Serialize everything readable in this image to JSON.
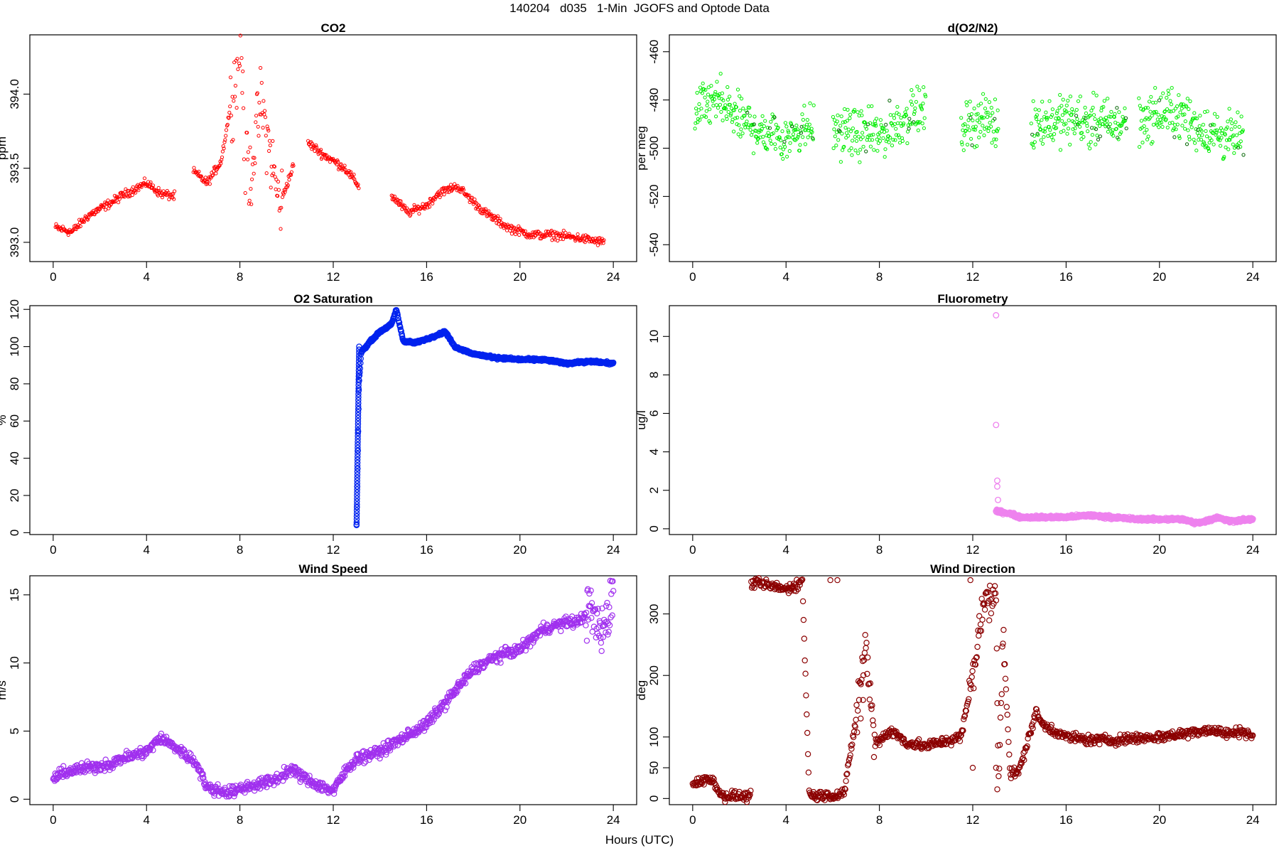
{
  "figure": {
    "title": "140204   d035   1-Min  JGOFS and Optode Data",
    "xlabel": "Hours (UTC)"
  },
  "chart_data": [
    {
      "id": "co2",
      "type": "scatter",
      "title": "CO2",
      "ylabel": "ppm",
      "color": "#ff0000",
      "marker": "small-open-circle",
      "xlim": [
        -1,
        25
      ],
      "ylim": [
        392.87,
        394.4
      ],
      "xticks": [
        0,
        4,
        8,
        12,
        16,
        20,
        24
      ],
      "yticks": [
        393.0,
        393.5,
        394.0
      ],
      "yticklabels": [
        "393.0",
        "393.5",
        "394.0"
      ],
      "gaps_hours": [
        [
          5.2,
          6.0
        ],
        [
          10.3,
          10.9
        ],
        [
          13.1,
          14.5
        ]
      ],
      "key_points": [
        [
          0.1,
          393.1
        ],
        [
          0.8,
          393.07
        ],
        [
          1.5,
          393.18
        ],
        [
          2.5,
          393.27
        ],
        [
          3.0,
          393.32
        ],
        [
          4.0,
          393.4
        ],
        [
          4.6,
          393.33
        ],
        [
          5.2,
          393.31
        ],
        [
          6.0,
          393.48
        ],
        [
          6.6,
          393.4
        ],
        [
          7.2,
          393.55
        ],
        [
          8.05,
          394.35
        ],
        [
          8.4,
          393.4
        ],
        [
          8.9,
          393.95
        ],
        [
          9.7,
          393.25
        ],
        [
          10.7,
          393.7
        ],
        [
          11.5,
          393.6
        ],
        [
          12.5,
          393.5
        ],
        [
          13.1,
          393.38
        ],
        [
          14.6,
          393.3
        ],
        [
          15.2,
          393.2
        ],
        [
          16.0,
          393.25
        ],
        [
          16.5,
          393.33
        ],
        [
          17.3,
          393.38
        ],
        [
          18.5,
          393.2
        ],
        [
          19.5,
          393.1
        ],
        [
          20.5,
          393.05
        ],
        [
          21.5,
          393.05
        ],
        [
          22.5,
          393.03
        ],
        [
          23.6,
          393.0
        ]
      ]
    },
    {
      "id": "do2n2",
      "type": "scatter",
      "title": "d(O2/N2)",
      "ylabel": "per meg",
      "color": "#00ee00",
      "marker": "small-open-circle",
      "xlim": [
        -1,
        25
      ],
      "ylim": [
        -547,
        -453
      ],
      "xticks": [
        0,
        4,
        8,
        12,
        16,
        20,
        24
      ],
      "yticks": [
        -540,
        -520,
        -500,
        -480,
        -460
      ],
      "gaps_hours": [
        [
          5.2,
          6.0
        ],
        [
          10.0,
          11.5
        ],
        [
          13.1,
          14.5
        ],
        [
          18.6,
          19.1
        ]
      ],
      "key_points": [
        [
          0.1,
          -485
        ],
        [
          1.0,
          -480
        ],
        [
          2.0,
          -488
        ],
        [
          3.0,
          -493
        ],
        [
          4.0,
          -495
        ],
        [
          5.0,
          -490
        ],
        [
          6.0,
          -493
        ],
        [
          8.0,
          -495
        ],
        [
          9.5,
          -485
        ],
        [
          11.6,
          -490
        ],
        [
          12.5,
          -488
        ],
        [
          13.0,
          -490
        ],
        [
          14.6,
          -490
        ],
        [
          16.0,
          -488
        ],
        [
          18.0,
          -490
        ],
        [
          19.2,
          -488
        ],
        [
          20.5,
          -485
        ],
        [
          22.0,
          -493
        ],
        [
          23.6,
          -497
        ]
      ]
    },
    {
      "id": "o2sat",
      "type": "scatter",
      "title": "O2 Saturation",
      "ylabel": "%",
      "color": "#0022ee",
      "marker": "open-circle",
      "xlim": [
        -1,
        25
      ],
      "ylim": [
        -1,
        122
      ],
      "xticks": [
        0,
        4,
        8,
        12,
        16,
        20,
        24
      ],
      "yticks": [
        0,
        20,
        40,
        60,
        80,
        100,
        120
      ],
      "data_start_hour": 13.0,
      "key_points": [
        [
          13.0,
          4
        ],
        [
          13.05,
          40
        ],
        [
          13.1,
          80
        ],
        [
          13.2,
          97
        ],
        [
          13.6,
          103
        ],
        [
          14.0,
          108
        ],
        [
          14.5,
          112
        ],
        [
          14.7,
          120
        ],
        [
          15.0,
          103
        ],
        [
          15.5,
          102
        ],
        [
          16.0,
          104
        ],
        [
          16.8,
          108
        ],
        [
          17.2,
          100
        ],
        [
          18.0,
          96
        ],
        [
          19.0,
          94
        ],
        [
          20.0,
          93
        ],
        [
          21.0,
          93
        ],
        [
          22.0,
          91
        ],
        [
          23.0,
          92
        ],
        [
          24.0,
          91
        ]
      ]
    },
    {
      "id": "fluor",
      "type": "scatter",
      "title": "Fluorometry",
      "ylabel": "ug/l",
      "color": "#ee82ee",
      "marker": "open-circle",
      "xlim": [
        -1,
        25
      ],
      "ylim": [
        -0.3,
        11.6
      ],
      "xticks": [
        0,
        4,
        8,
        12,
        16,
        20,
        24
      ],
      "yticks": [
        0,
        2,
        4,
        6,
        8,
        10
      ],
      "data_start_hour": 13.0,
      "spikes": [
        [
          13.0,
          11.1
        ],
        [
          13.0,
          5.4
        ],
        [
          13.05,
          2.5
        ],
        [
          13.05,
          2.2
        ],
        [
          13.08,
          1.5
        ]
      ],
      "key_points": [
        [
          13.1,
          0.9
        ],
        [
          13.6,
          0.8
        ],
        [
          14.0,
          0.6
        ],
        [
          15.0,
          0.6
        ],
        [
          16.0,
          0.6
        ],
        [
          17.0,
          0.7
        ],
        [
          18.0,
          0.6
        ],
        [
          19.0,
          0.5
        ],
        [
          20.0,
          0.5
        ],
        [
          21.0,
          0.5
        ],
        [
          21.5,
          0.3
        ],
        [
          22.0,
          0.4
        ],
        [
          22.5,
          0.6
        ],
        [
          23.0,
          0.4
        ],
        [
          24.0,
          0.5
        ]
      ]
    },
    {
      "id": "wspd",
      "type": "scatter",
      "title": "Wind Speed",
      "ylabel": "m/s",
      "color": "#a030ee",
      "marker": "open-circle",
      "xlim": [
        -1,
        25
      ],
      "ylim": [
        -0.4,
        16.4
      ],
      "xticks": [
        0,
        4,
        8,
        12,
        16,
        20,
        24
      ],
      "yticks": [
        0,
        5,
        10,
        15
      ],
      "key_points": [
        [
          0.0,
          1.5
        ],
        [
          0.5,
          2.0
        ],
        [
          1.5,
          2.3
        ],
        [
          2.5,
          2.6
        ],
        [
          3.0,
          3.0
        ],
        [
          4.0,
          3.5
        ],
        [
          4.6,
          4.5
        ],
        [
          5.5,
          3.5
        ],
        [
          6.2,
          2.5
        ],
        [
          6.6,
          0.8
        ],
        [
          7.5,
          0.5
        ],
        [
          8.5,
          1.0
        ],
        [
          9.5,
          1.4
        ],
        [
          10.2,
          2.2
        ],
        [
          11.0,
          1.3
        ],
        [
          12.0,
          0.6
        ],
        [
          12.5,
          2.0
        ],
        [
          13.0,
          3.0
        ],
        [
          14.0,
          3.5
        ],
        [
          15.0,
          4.5
        ],
        [
          16.0,
          5.5
        ],
        [
          17.0,
          7.5
        ],
        [
          18.0,
          9.5
        ],
        [
          19.0,
          10.5
        ],
        [
          20.0,
          11.0
        ],
        [
          21.0,
          12.5
        ],
        [
          22.0,
          13.0
        ],
        [
          22.5,
          13.0
        ],
        [
          23.0,
          14.0
        ],
        [
          23.5,
          12.0
        ],
        [
          24.0,
          15.0
        ]
      ]
    },
    {
      "id": "wdir",
      "type": "scatter",
      "title": "Wind Direction",
      "ylabel": "deg",
      "color": "#8b0000",
      "marker": "open-circle",
      "xlim": [
        -1,
        25
      ],
      "ylim": [
        -10,
        362
      ],
      "xticks": [
        0,
        4,
        8,
        12,
        16,
        20,
        24
      ],
      "yticks": [
        0,
        50,
        100,
        200,
        300
      ],
      "key_points": [
        [
          0.0,
          25
        ],
        [
          0.5,
          30
        ],
        [
          0.9,
          30
        ],
        [
          1.2,
          5
        ],
        [
          2.5,
          3
        ],
        [
          1.2,
          355
        ],
        [
          2.0,
          355
        ],
        [
          3.0,
          348
        ],
        [
          4.0,
          340
        ],
        [
          4.7,
          352
        ],
        [
          5.0,
          5
        ],
        [
          6.0,
          5
        ],
        [
          6.5,
          10
        ],
        [
          7.0,
          130
        ],
        [
          7.4,
          250
        ],
        [
          7.8,
          90
        ],
        [
          8.5,
          110
        ],
        [
          9.2,
          90
        ],
        [
          10.0,
          85
        ],
        [
          11.0,
          95
        ],
        [
          11.5,
          100
        ],
        [
          12.0,
          200
        ],
        [
          12.4,
          310
        ],
        [
          13.0,
          330
        ],
        [
          13.1,
          20
        ],
        [
          13.3,
          280
        ],
        [
          13.6,
          40
        ],
        [
          14.0,
          45
        ],
        [
          14.7,
          140
        ],
        [
          15.0,
          120
        ],
        [
          16.0,
          100
        ],
        [
          17.0,
          95
        ],
        [
          18.0,
          95
        ],
        [
          19.0,
          98
        ],
        [
          20.0,
          100
        ],
        [
          21.0,
          105
        ],
        [
          22.0,
          112
        ],
        [
          23.0,
          105
        ],
        [
          23.6,
          110
        ],
        [
          24.0,
          100
        ]
      ]
    }
  ]
}
